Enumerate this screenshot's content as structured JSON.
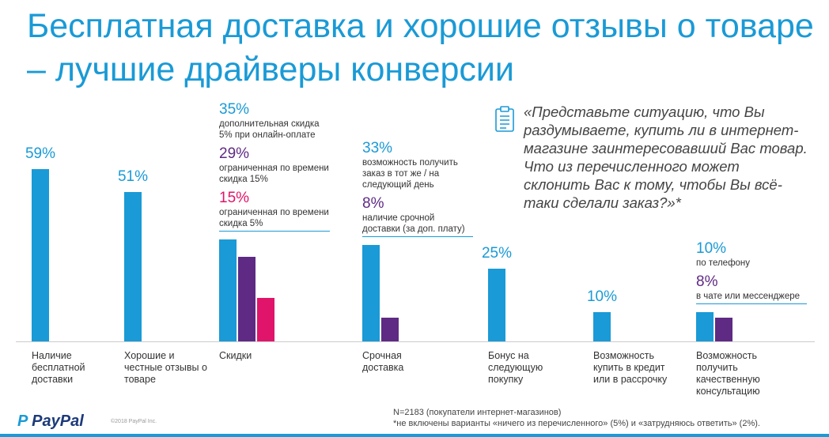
{
  "title": "Бесплатная доставка и хорошие отзывы о товаре – лучшие драйверы конверсии",
  "quote": "«Представьте ситуацию, что Вы раздумываете, купить ли в интернет-магазине заинтересовавший Вас товар. Что из перечисленного может склонить Вас к тому, чтобы Вы всё-таки сделали заказ?»*",
  "chart_data": {
    "type": "bar",
    "categories": [
      "Наличие бесплатной доставки",
      "Хорошие и честные отзывы о товаре",
      "Скидки",
      "Срочная доставка",
      "Бонус на следующую покупку",
      "Возможность купить в кредит или в рассрочку",
      "Возможность получить качественную консультацию"
    ],
    "series": [
      {
        "color": "#1a9ad6",
        "values": [
          59,
          51,
          35,
          33,
          25,
          10,
          10
        ],
        "value_labels": [
          "59%",
          "51%",
          "35%",
          "33%",
          "25%",
          "10%",
          "10%"
        ],
        "notes": [
          null,
          null,
          "дополнительная скидка 5% при онлайн-оплате",
          "возможность получить заказ в тот же / на следующий день",
          null,
          null,
          "по телефону"
        ]
      },
      {
        "color": "#5e2a84",
        "values": [
          null,
          null,
          29,
          8,
          null,
          null,
          8
        ],
        "value_labels": [
          null,
          null,
          "29%",
          "8%",
          null,
          null,
          "8%"
        ],
        "notes": [
          null,
          null,
          "ограниченная по времени скидка 15%",
          "наличие срочной доставки (за доп. плату)",
          null,
          null,
          "в чате или мессенджере"
        ]
      },
      {
        "color": "#e0146a",
        "values": [
          null,
          null,
          15,
          null,
          null,
          null,
          null
        ],
        "value_labels": [
          null,
          null,
          "15%",
          null,
          null,
          null,
          null
        ],
        "notes": [
          null,
          null,
          "ограниченная по времени скидка 5%",
          null,
          null,
          null,
          null
        ]
      }
    ]
  },
  "footer": {
    "logo": "PayPal",
    "copyright": "©2018 PayPal Inc.",
    "sample": "N=2183 (покупатели интернет-магазинов)",
    "footnote": "*не включены варианты «ничего из перечисленного» (5%) и «затрудняюсь ответить» (2%)."
  }
}
